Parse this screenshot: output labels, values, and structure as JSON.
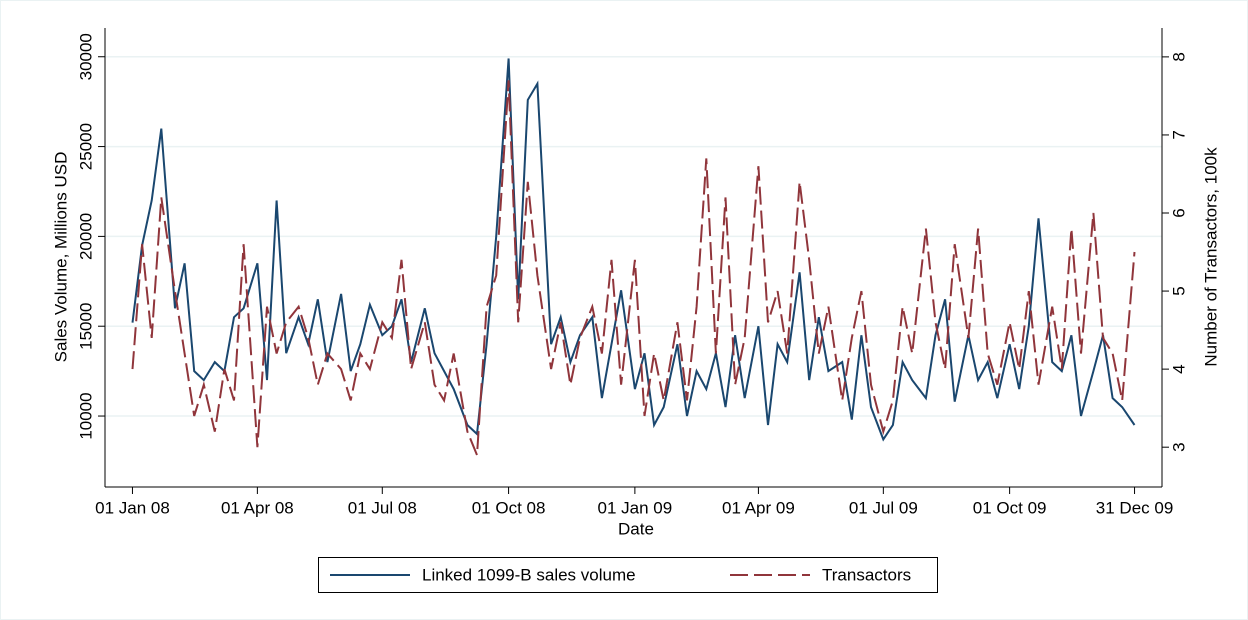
{
  "chart_data": {
    "type": "line",
    "x_label": "Date",
    "y_label": "Sales Volume, Millions USD",
    "y2_label": "Number of Transactors, 100k",
    "x": [
      "2008-01-01",
      "2008-01-08",
      "2008-01-15",
      "2008-01-22",
      "2008-02-01",
      "2008-02-08",
      "2008-02-15",
      "2008-02-22",
      "2008-03-01",
      "2008-03-08",
      "2008-03-15",
      "2008-03-22",
      "2008-04-01",
      "2008-04-08",
      "2008-04-15",
      "2008-04-22",
      "2008-05-01",
      "2008-05-08",
      "2008-05-15",
      "2008-05-22",
      "2008-06-01",
      "2008-06-08",
      "2008-06-15",
      "2008-06-22",
      "2008-07-01",
      "2008-07-08",
      "2008-07-15",
      "2008-07-22",
      "2008-08-01",
      "2008-08-08",
      "2008-08-15",
      "2008-08-22",
      "2008-09-01",
      "2008-09-08",
      "2008-09-15",
      "2008-09-22",
      "2008-10-01",
      "2008-10-08",
      "2008-10-15",
      "2008-10-22",
      "2008-11-01",
      "2008-11-08",
      "2008-11-15",
      "2008-11-22",
      "2008-12-01",
      "2008-12-08",
      "2008-12-15",
      "2008-12-22",
      "2009-01-01",
      "2009-01-08",
      "2009-01-15",
      "2009-01-22",
      "2009-02-01",
      "2009-02-08",
      "2009-02-15",
      "2009-02-22",
      "2009-03-01",
      "2009-03-08",
      "2009-03-15",
      "2009-03-22",
      "2009-04-01",
      "2009-04-08",
      "2009-04-15",
      "2009-04-22",
      "2009-05-01",
      "2009-05-08",
      "2009-05-15",
      "2009-05-22",
      "2009-06-01",
      "2009-06-08",
      "2009-06-15",
      "2009-06-22",
      "2009-07-01",
      "2009-07-08",
      "2009-07-15",
      "2009-07-22",
      "2009-08-01",
      "2009-08-08",
      "2009-08-15",
      "2009-08-22",
      "2009-09-01",
      "2009-09-08",
      "2009-09-15",
      "2009-09-22",
      "2009-10-01",
      "2009-10-08",
      "2009-10-15",
      "2009-10-22",
      "2009-11-01",
      "2009-11-08",
      "2009-11-15",
      "2009-11-22",
      "2009-12-01",
      "2009-12-08",
      "2009-12-15",
      "2009-12-22",
      "2009-12-31"
    ],
    "series": [
      {
        "name": "Linked 1099-B sales volume",
        "color": "#1a476f",
        "dash": "solid",
        "axis": "y",
        "values": [
          15200,
          19500,
          22000,
          26000,
          16000,
          18500,
          12500,
          12000,
          13000,
          12500,
          15500,
          16000,
          18500,
          12000,
          22000,
          13500,
          15500,
          14000,
          16500,
          13000,
          16800,
          12500,
          14000,
          16200,
          14500,
          15000,
          16500,
          13000,
          16000,
          13500,
          12500,
          11500,
          9500,
          9000,
          14000,
          20000,
          29900,
          16500,
          27600,
          28500,
          14000,
          15500,
          13000,
          14500,
          15500,
          11000,
          14000,
          17000,
          11500,
          13500,
          9500,
          10500,
          14000,
          10000,
          12500,
          11500,
          13500,
          10500,
          14500,
          11000,
          15000,
          9500,
          14000,
          13000,
          18000,
          12000,
          15500,
          12500,
          13000,
          9800,
          14500,
          10500,
          8700,
          9500,
          13000,
          12000,
          11000,
          14500,
          16500,
          10800,
          14500,
          12000,
          13000,
          11000,
          14000,
          11500,
          15000,
          21000,
          13000,
          12500,
          14500,
          10000,
          12500,
          14500,
          11000,
          10500,
          9500
        ]
      },
      {
        "name": "Transactors",
        "color": "#90353b",
        "dash": "dashed",
        "axis": "y2",
        "values": [
          4.0,
          5.6,
          4.4,
          6.2,
          5.0,
          4.2,
          3.4,
          3.8,
          3.2,
          4.0,
          3.6,
          5.6,
          3.0,
          4.8,
          4.2,
          4.6,
          4.8,
          4.4,
          3.8,
          4.2,
          4.0,
          3.6,
          4.2,
          4.0,
          4.6,
          4.4,
          5.4,
          4.0,
          4.6,
          3.8,
          3.6,
          4.2,
          3.2,
          2.9,
          4.8,
          5.2,
          7.7,
          4.6,
          6.4,
          5.2,
          4.0,
          4.6,
          3.8,
          4.4,
          4.8,
          4.2,
          5.4,
          3.8,
          5.4,
          3.4,
          4.2,
          3.6,
          4.6,
          3.6,
          4.8,
          6.7,
          4.2,
          6.2,
          3.8,
          4.4,
          6.6,
          4.6,
          5.0,
          4.2,
          6.4,
          5.4,
          4.2,
          4.8,
          3.6,
          4.4,
          5.0,
          3.8,
          3.2,
          3.6,
          4.8,
          4.2,
          5.8,
          4.6,
          4.0,
          5.6,
          4.4,
          5.8,
          4.2,
          3.8,
          4.6,
          4.0,
          5.0,
          3.8,
          4.8,
          4.0,
          5.8,
          4.2,
          6.0,
          4.4,
          4.2,
          3.6,
          5.5
        ]
      }
    ],
    "xlim": [
      "2007-12-12",
      "2010-01-20"
    ],
    "xticks": [
      {
        "value": "2008-01-01",
        "label": "01 Jan 08"
      },
      {
        "value": "2008-04-01",
        "label": "01 Apr 08"
      },
      {
        "value": "2008-07-01",
        "label": "01 Jul 08"
      },
      {
        "value": "2008-10-01",
        "label": "01 Oct 08"
      },
      {
        "value": "2009-01-01",
        "label": "01 Jan 09"
      },
      {
        "value": "2009-04-01",
        "label": "01 Apr 09"
      },
      {
        "value": "2009-07-01",
        "label": "01 Jul 09"
      },
      {
        "value": "2009-10-01",
        "label": "01 Oct 09"
      },
      {
        "value": "2009-12-31",
        "label": "31 Dec 09"
      }
    ],
    "ylim": [
      6050,
      31600
    ],
    "yticks": [
      10000,
      15000,
      20000,
      25000,
      30000
    ],
    "y2lim": [
      2.49,
      8.37
    ],
    "y2ticks": [
      3,
      4,
      5,
      6,
      7,
      8
    ],
    "grid": true,
    "legend": "bottom"
  }
}
